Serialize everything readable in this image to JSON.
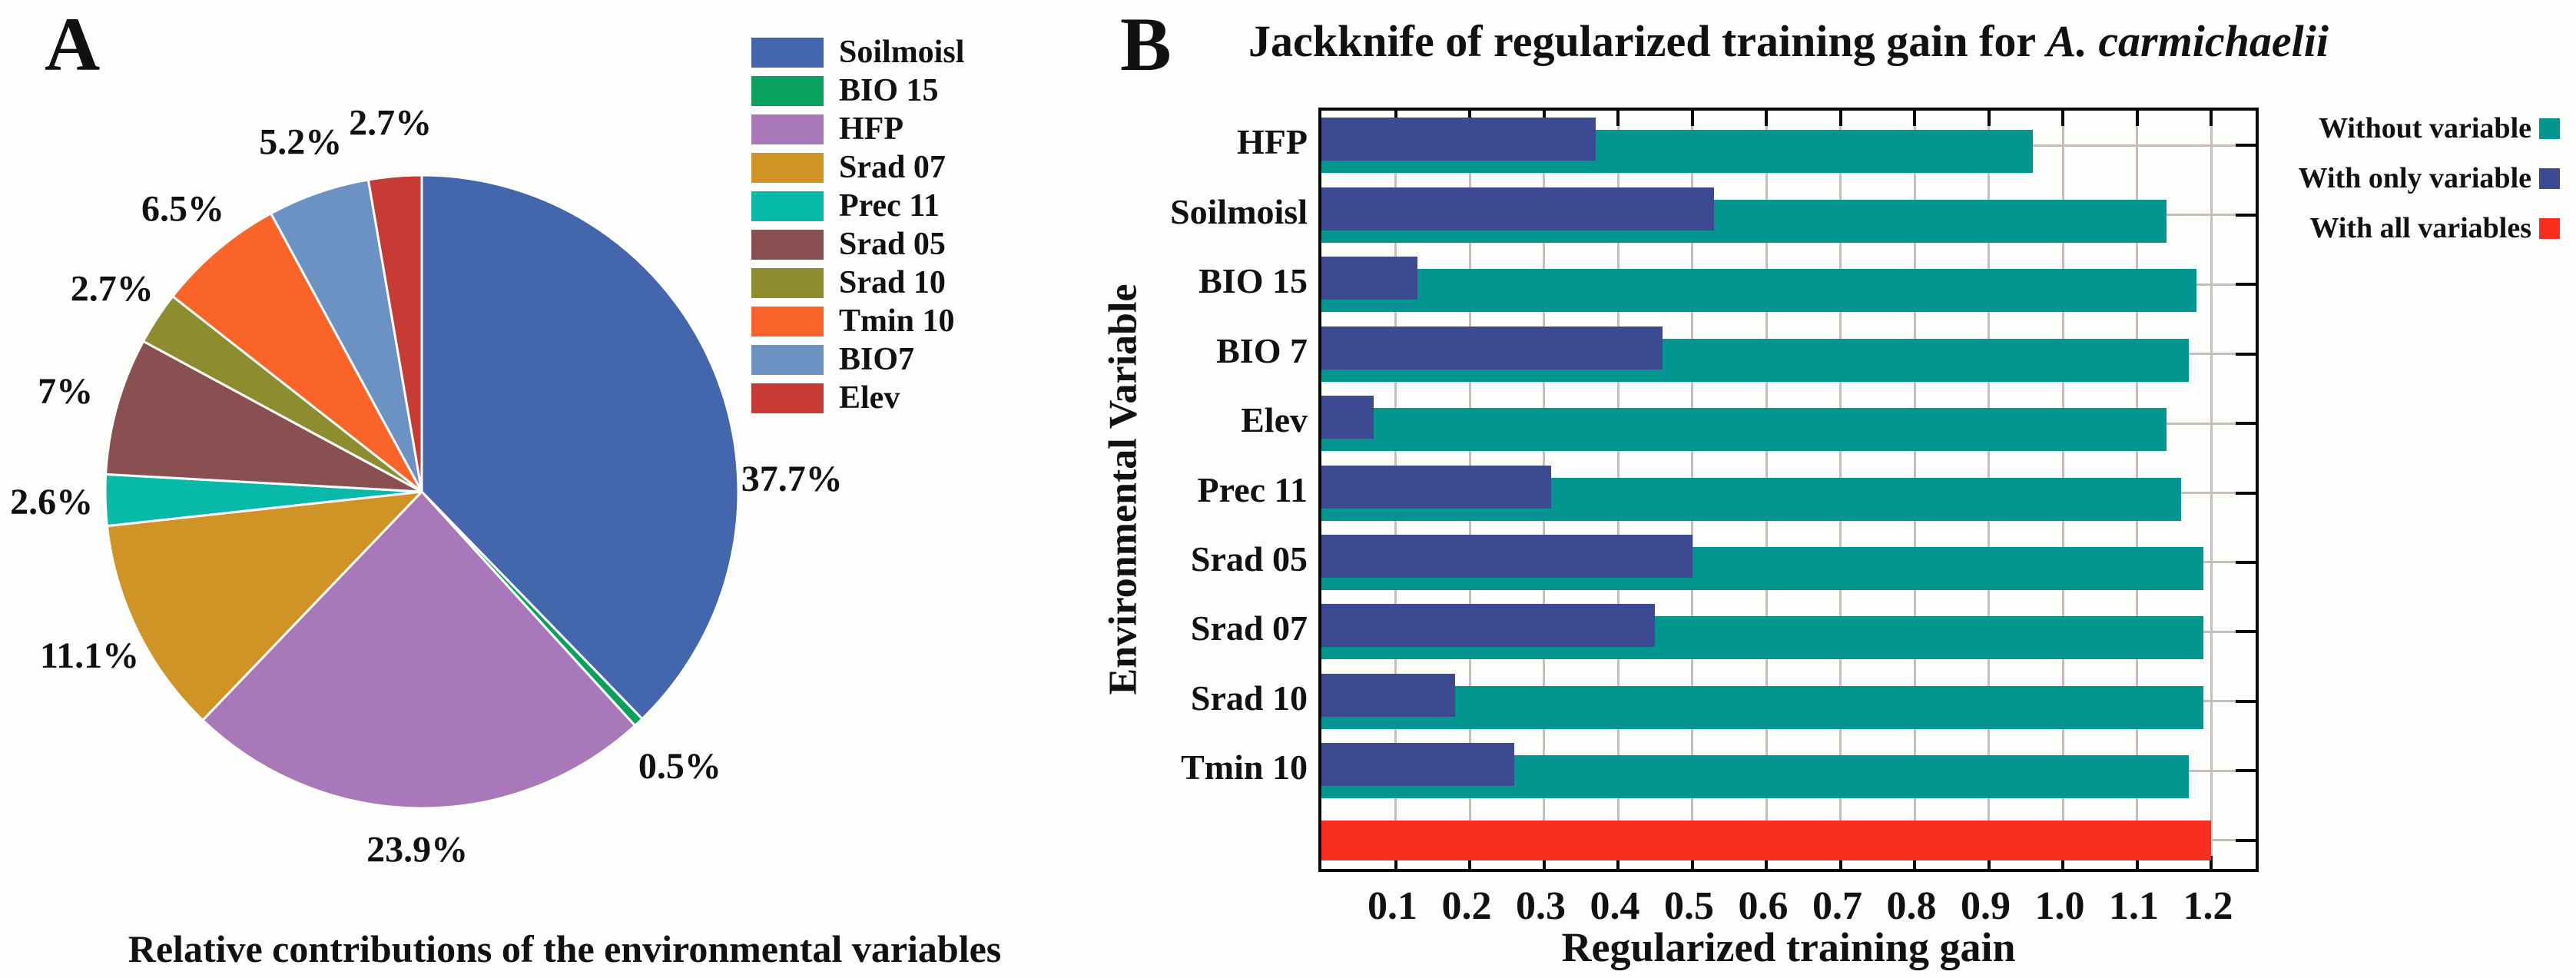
{
  "figure": {
    "panel_a": {
      "letter": "A",
      "caption": "Relative contributions of the environmental variables"
    },
    "panel_b": {
      "letter": "B",
      "title_prefix": "Jackknife of regularized training gain for ",
      "title_species": "A. carmichaelii",
      "xlabel": "Regularized training gain",
      "ylabel": "Environmental Variable"
    }
  },
  "colors": {
    "background": "#FDFDFB",
    "text": "#111111",
    "axis": "#0A0A0A",
    "grid": "#C8BFBC",
    "without_variable": "#019690",
    "with_only_variable": "#3D4A91",
    "with_all_variables": "#FA2E20"
  },
  "chart_data": [
    {
      "type": "pie",
      "title": "Relative contributions of the environmental variables",
      "labels": [
        "Soilmoisl",
        "BIO 15",
        "HFP",
        "Srad 07",
        "Prec 11",
        "Srad 05",
        "Srad 10",
        "Tmin 10",
        "BIO7",
        "Elev"
      ],
      "values_percent": [
        37.7,
        0.5,
        23.9,
        11.1,
        2.6,
        7,
        2.7,
        6.5,
        5.2,
        2.7
      ],
      "value_labels": [
        "37.7%",
        "0.5%",
        "23.9%",
        "11.1%",
        "2.6%",
        "7%",
        "2.7%",
        "6.5%",
        "5.2%",
        "2.7%"
      ],
      "colors": [
        "#4466AC",
        "#09A15F",
        "#A878B8",
        "#CF9326",
        "#06B9A9",
        "#8A4F50",
        "#8D8C2F",
        "#FB6428",
        "#6C92C3",
        "#C83A34"
      ],
      "start_angle": "12 o'clock",
      "direction": "clockwise",
      "legend_position": "right"
    },
    {
      "type": "bar",
      "orientation": "horizontal",
      "title": "Jackknife of regularized training gain for A. carmichaelii",
      "xlabel": "Regularized training gain",
      "ylabel": "Environmental Variable",
      "categories": [
        "HFP",
        "Soilmoisl",
        "BIO 15",
        "BIO 7",
        "Elev",
        "Prec 11",
        "Srad 05",
        "Srad 07",
        "Srad 10",
        "Tmin 10"
      ],
      "series": [
        {
          "name": "Without variable",
          "color": "#019690",
          "values": [
            0.96,
            1.14,
            1.18,
            1.17,
            1.14,
            1.16,
            1.19,
            1.19,
            1.19,
            1.17
          ]
        },
        {
          "name": "With only variable",
          "color": "#3D4A91",
          "values": [
            0.37,
            0.53,
            0.13,
            0.46,
            0.07,
            0.31,
            0.5,
            0.45,
            0.18,
            0.26
          ]
        },
        {
          "name": "With all variables",
          "color": "#FA2E20",
          "values": [
            1.2
          ]
        }
      ],
      "xlim": [
        0,
        1.268
      ],
      "xticks": [
        0.1,
        0.2,
        0.3,
        0.4,
        0.5,
        0.6,
        0.7,
        0.8,
        0.9,
        1.0,
        1.1,
        1.2
      ],
      "xtick_labels": [
        "0.1",
        "0.2",
        "0.3",
        "0.4",
        "0.5",
        "0.6",
        "0.7",
        "0.8",
        "0.9",
        "1.0",
        "1.1",
        "1.2"
      ],
      "grid": true,
      "legend_position": "top-right-outside"
    }
  ]
}
